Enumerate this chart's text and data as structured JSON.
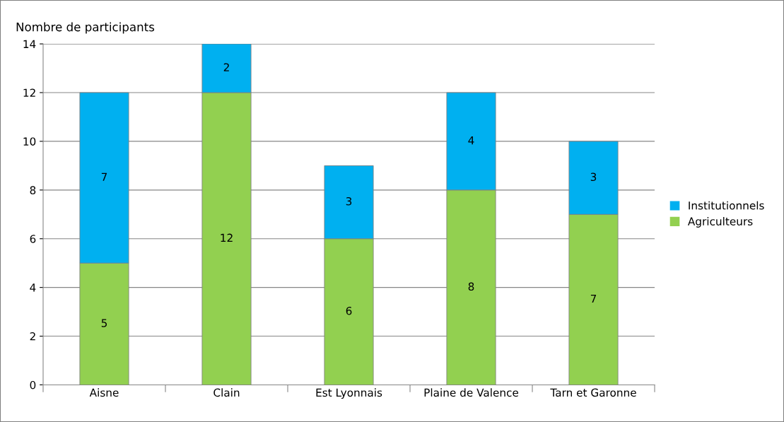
{
  "chart_data": {
    "type": "bar",
    "ylabel": "Nombre de participants",
    "categories": [
      "Aisne",
      "Clain",
      "Est Lyonnais",
      "Plaine de Valence",
      "Tarn et Garonne"
    ],
    "stacked": true,
    "series": [
      {
        "name": "Agriculteurs",
        "color": "#92d050",
        "values": [
          5,
          12,
          6,
          8,
          7
        ]
      },
      {
        "name": "Institutionnels",
        "color": "#00b0f0",
        "values": [
          7,
          2,
          3,
          4,
          3
        ]
      }
    ],
    "ylim": [
      0,
      14
    ],
    "yticks": [
      0,
      2,
      4,
      6,
      8,
      10,
      12,
      14
    ],
    "grid": "y",
    "legend": "right",
    "data_labels": true
  }
}
